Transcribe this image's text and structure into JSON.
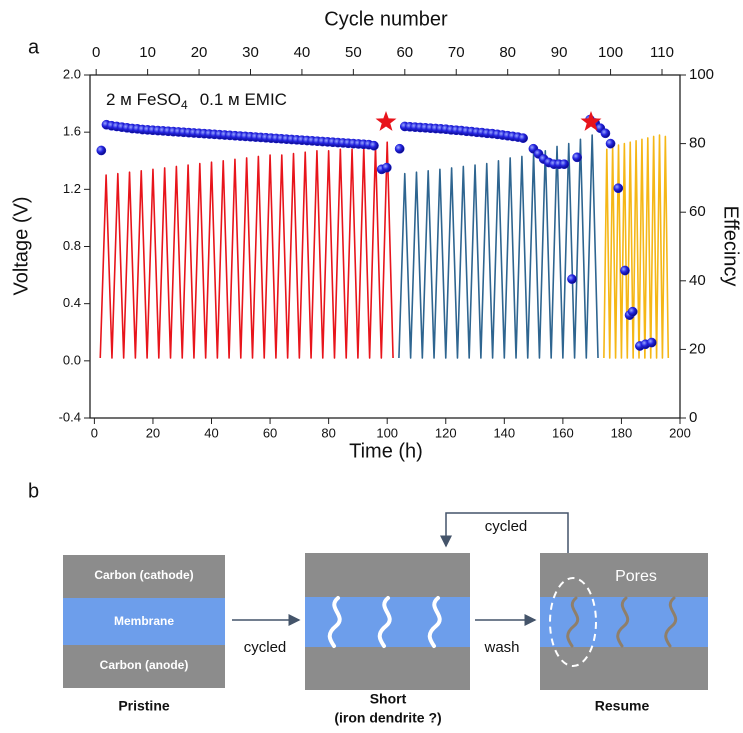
{
  "chart_data": {
    "type": "line",
    "panel_label": "a",
    "xlabel": "Time (h)",
    "x2label": "Cycle number",
    "ylabel": "Voltage (V)",
    "y2label": "Effecincy",
    "annotation": [
      "2 м FeSO",
      "4",
      "0.1 м EMIC"
    ],
    "xlim": [
      -1.5,
      200
    ],
    "xticks": [
      0,
      20,
      40,
      60,
      80,
      100,
      120,
      140,
      160,
      180,
      200
    ],
    "x2lim": [
      -1.2,
      113.5
    ],
    "x2ticks": [
      0,
      10,
      20,
      30,
      40,
      50,
      60,
      70,
      80,
      90,
      100,
      110
    ],
    "ylim": [
      -0.4,
      2.0
    ],
    "yticks": [
      -0.4,
      {
        "value": 0,
        "label": "0.0"
      },
      0.4,
      0.8,
      1.2,
      1.6,
      {
        "value": 2,
        "label": "2.0"
      }
    ],
    "y2lim": [
      0,
      100
    ],
    "y2ticks": [
      0,
      20,
      40,
      60,
      80,
      100
    ],
    "series": [
      {
        "type": "line",
        "color": "#e8141b",
        "x": [
          2,
          4,
          6,
          8,
          10,
          12,
          14,
          16,
          18,
          20,
          22,
          24,
          26,
          28,
          30,
          32,
          34,
          36,
          38,
          40,
          42,
          44,
          46,
          48,
          50,
          52,
          54,
          56,
          58,
          60,
          62,
          64,
          66,
          68,
          70,
          72,
          74,
          76,
          78,
          80,
          82,
          84,
          86,
          88,
          90,
          92,
          94,
          96,
          98,
          100,
          102
        ],
        "values": [
          0.02,
          1.3,
          0.02,
          1.31,
          0.02,
          1.32,
          0.02,
          1.33,
          0.02,
          1.34,
          0.02,
          1.35,
          0.02,
          1.36,
          0.02,
          1.37,
          0.02,
          1.38,
          0.02,
          1.39,
          0.02,
          1.4,
          0.02,
          1.41,
          0.02,
          1.42,
          0.02,
          1.43,
          0.02,
          1.44,
          0.02,
          1.44,
          0.02,
          1.45,
          0.02,
          1.46,
          0.02,
          1.47,
          0.02,
          1.47,
          0.02,
          1.48,
          0.02,
          1.48,
          0.02,
          1.49,
          0.02,
          1.5,
          0.02,
          1.53,
          0.02
        ]
      },
      {
        "type": "line",
        "color": "#2e6590",
        "x": [
          104,
          106,
          108,
          110,
          112,
          114,
          116,
          118,
          120,
          122,
          124,
          126,
          128,
          130,
          132,
          134,
          136,
          138,
          140,
          142,
          144,
          146,
          148,
          150,
          152,
          154,
          156,
          158,
          160,
          162,
          164,
          166,
          168,
          170,
          172
        ],
        "values": [
          0.02,
          1.31,
          0.02,
          1.32,
          0.02,
          1.33,
          0.02,
          1.34,
          0.02,
          1.35,
          0.02,
          1.36,
          0.02,
          1.37,
          0.02,
          1.38,
          0.02,
          1.4,
          0.02,
          1.42,
          0.02,
          1.43,
          0.02,
          1.45,
          0.02,
          1.47,
          0.02,
          1.5,
          0.02,
          1.52,
          0.02,
          1.55,
          0.02,
          1.58,
          0.02
        ]
      },
      {
        "type": "line",
        "color": "#f5b716",
        "x": [
          174,
          175,
          176,
          177,
          178,
          179,
          180,
          181,
          182,
          183,
          184,
          185,
          186,
          187,
          188,
          189,
          190,
          191,
          192,
          193,
          194,
          195,
          196
        ],
        "values": [
          0.02,
          1.48,
          0.02,
          1.5,
          0.02,
          1.51,
          0.02,
          1.52,
          0.02,
          1.53,
          0.02,
          1.54,
          0.02,
          1.55,
          0.02,
          1.56,
          0.02,
          1.57,
          0.02,
          1.58,
          0.02,
          1.57,
          0.02
        ]
      },
      {
        "type": "scatter",
        "color": "#1f1fd8",
        "axis": "y2",
        "xaxis": "x2",
        "x": [
          1,
          2,
          3,
          4,
          5,
          6,
          7,
          8,
          9,
          10,
          11,
          12,
          13,
          14,
          15,
          16,
          17,
          18,
          19,
          20,
          21,
          22,
          23,
          24,
          25,
          26,
          27,
          28,
          29,
          30,
          31,
          32,
          33,
          34,
          35,
          36,
          37,
          38,
          39,
          40,
          41,
          42,
          43,
          44,
          45,
          46,
          47,
          48,
          49,
          50,
          51,
          52,
          53,
          54,
          55.5,
          56.5,
          59,
          60,
          61,
          62,
          63,
          64,
          65,
          66,
          67,
          68,
          69,
          70,
          71,
          72,
          73,
          74,
          75,
          76,
          77,
          78,
          79,
          80,
          81,
          82,
          83,
          85,
          86,
          87,
          88,
          89,
          90,
          91,
          92.5,
          93.5,
          96,
          97,
          98,
          99,
          100,
          101.5,
          102.8,
          103.7,
          104.3,
          105.7,
          106.8,
          108
        ],
        "values": [
          78,
          85.5,
          85.2,
          85.0,
          84.8,
          84.6,
          84.4,
          84.3,
          84.1,
          84.0,
          83.9,
          83.8,
          83.7,
          83.6,
          83.5,
          83.4,
          83.3,
          83.2,
          83.1,
          83.0,
          82.9,
          82.8,
          82.7,
          82.6,
          82.5,
          82.4,
          82.3,
          82.2,
          82.1,
          82.0,
          81.9,
          81.8,
          81.7,
          81.6,
          81.5,
          81.4,
          81.3,
          81.2,
          81.1,
          81.0,
          80.9,
          80.8,
          80.7,
          80.6,
          80.5,
          80.4,
          80.3,
          80.2,
          80.1,
          80.0,
          79.9,
          79.8,
          79.7,
          79.4,
          72.5,
          73,
          78.5,
          85.0,
          84.9,
          84.8,
          84.7,
          84.6,
          84.5,
          84.4,
          84.3,
          84.2,
          84.0,
          83.9,
          83.8,
          83.6,
          83.5,
          83.3,
          83.2,
          83.0,
          82.9,
          82.7,
          82.5,
          82.3,
          82.1,
          81.9,
          81.6,
          78.5,
          77,
          75.5,
          74.5,
          74,
          74,
          74,
          40.5,
          76,
          87,
          86,
          84.5,
          83,
          80,
          67,
          43,
          30,
          31,
          21,
          21.5,
          22
        ]
      }
    ]
  },
  "diagram": {
    "panel_label": "b",
    "pristine": {
      "top": "Carbon (cathode)",
      "middle": "Membrane",
      "bottom": "Carbon (anode)",
      "caption": "Pristine"
    },
    "arrow1": "cycled",
    "short": {
      "caption": [
        "Short",
        "(iron dendrite ?)"
      ]
    },
    "arrow2": "wash",
    "loop": "cycled",
    "resume": {
      "label": "Pores",
      "caption": "Resume"
    }
  }
}
